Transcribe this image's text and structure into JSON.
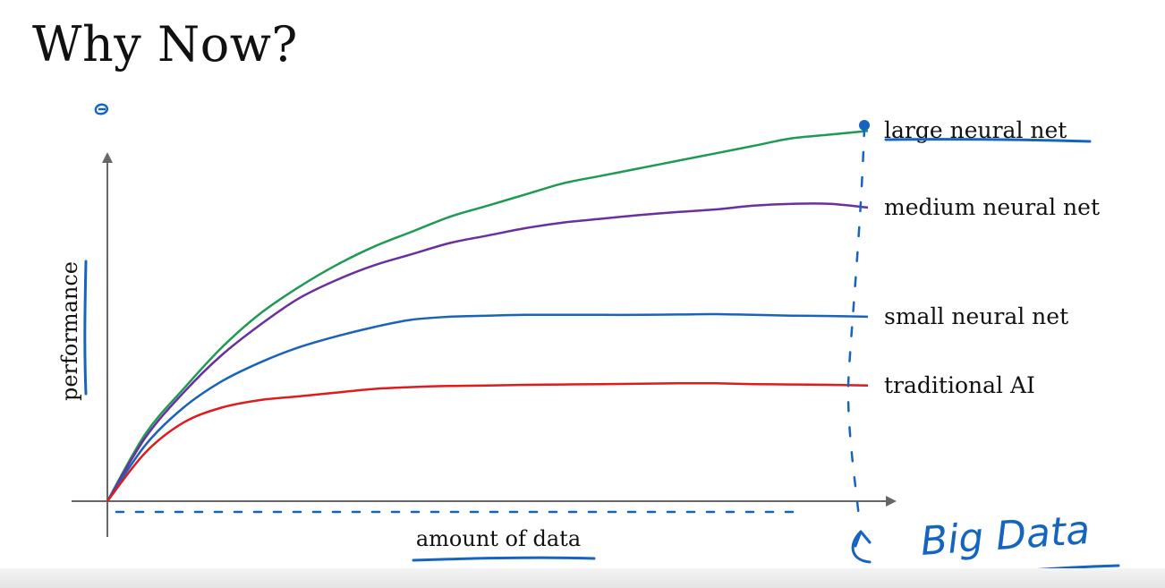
{
  "slide": {
    "title": "Why Now?"
  },
  "colors": {
    "large": "#1f9a55",
    "medium": "#6a2fa0",
    "small": "#1b63b8",
    "traditional": "#e01b1b",
    "ink": "#1565c0",
    "axis": "#666666"
  },
  "chart_data": {
    "type": "line",
    "title": "",
    "xlabel": "amount of data",
    "ylabel": "performance",
    "xlim": [
      0,
      100
    ],
    "ylim": [
      0,
      100
    ],
    "grid": false,
    "legend": "right, inline labels at end of each curve",
    "annotation": "Big Data",
    "x": [
      0,
      5,
      10,
      15,
      20,
      25,
      30,
      35,
      40,
      45,
      50,
      55,
      60,
      65,
      70,
      75,
      80,
      85,
      90,
      95,
      100
    ],
    "series": [
      {
        "name": "large neural net",
        "color_key": "large",
        "values": [
          0,
          18,
          30,
          41,
          50,
          57,
          63,
          68,
          72,
          76,
          79,
          82,
          85,
          87,
          89,
          91,
          93,
          95,
          97,
          98,
          99
        ]
      },
      {
        "name": "medium neural net",
        "color_key": "medium",
        "values": [
          0,
          17,
          29,
          39,
          47,
          54,
          59,
          63,
          66,
          69,
          71,
          73,
          74.5,
          75.5,
          76.5,
          77.3,
          78,
          79,
          79.5,
          79.5,
          78.5
        ]
      },
      {
        "name": "small neural net",
        "color_key": "small",
        "values": [
          0,
          15,
          25,
          32,
          37,
          41,
          44,
          46.5,
          48.5,
          49.3,
          49.6,
          49.8,
          49.8,
          49.8,
          49.8,
          49.9,
          50,
          49.8,
          49.6,
          49.5,
          49.3
        ]
      },
      {
        "name": "traditional AI",
        "color_key": "traditional",
        "values": [
          0,
          13,
          21,
          25,
          27,
          28,
          29,
          30,
          30.5,
          30.8,
          30.9,
          31.1,
          31.2,
          31.3,
          31.4,
          31.5,
          31.5,
          31.3,
          31.2,
          31.1,
          30.9
        ]
      }
    ]
  }
}
